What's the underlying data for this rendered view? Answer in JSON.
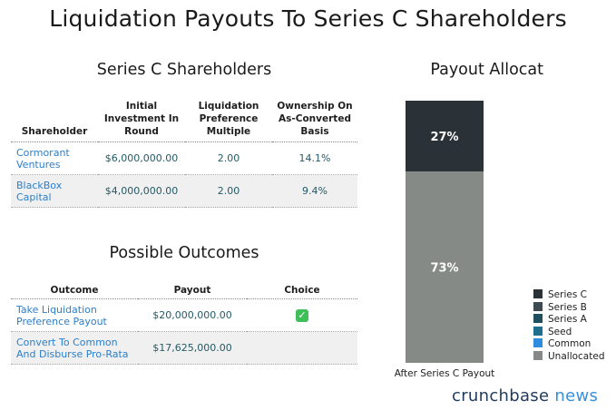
{
  "title": "Liquidation Payouts To Series C Shareholders",
  "shareholders": {
    "heading": "Series C Shareholders",
    "columns": [
      "Shareholder",
      "Initial Investment In Round",
      "Liquidation Preference Multiple",
      "Ownership On As-Converted Basis"
    ],
    "rows": [
      {
        "name": "Cormorant Ventures",
        "investment": "$6,000,000.00",
        "multiple": "2.00",
        "ownership": "14.1%"
      },
      {
        "name": "BlackBox Capital",
        "investment": "$4,000,000.00",
        "multiple": "2.00",
        "ownership": "9.4%"
      }
    ]
  },
  "outcomes": {
    "heading": "Possible Outcomes",
    "columns": [
      "Outcome",
      "Payout",
      "Choice"
    ],
    "rows": [
      {
        "outcome": "Take Liquidation Preference Payout",
        "payout": "$20,000,000.00",
        "choice_icon": "check-icon",
        "chosen": true
      },
      {
        "outcome": "Convert To Common And Disburse Pro-Rata",
        "payout": "$17,625,000.00",
        "chosen": false
      }
    ]
  },
  "chart_data": {
    "type": "bar",
    "stacked": true,
    "title": "Payout Allocation",
    "categories": [
      "After Series C Payout"
    ],
    "ylim": [
      0,
      100
    ],
    "series": [
      {
        "name": "Series C",
        "values": [
          27
        ],
        "label": "27%",
        "color": "#2a3238"
      },
      {
        "name": "Series B",
        "values": [
          0
        ],
        "color": "#3d4a52"
      },
      {
        "name": "Series A",
        "values": [
          0
        ],
        "color": "#1f4e5f"
      },
      {
        "name": "Seed",
        "values": [
          0
        ],
        "color": "#1e6e8e"
      },
      {
        "name": "Common",
        "values": [
          0
        ],
        "color": "#2f8de0"
      },
      {
        "name": "Unallocated",
        "values": [
          73
        ],
        "label": "73%",
        "color": "#868a87"
      }
    ],
    "legend_position": "bottom-right"
  },
  "brand": {
    "part1": "crunchbase",
    "part2": "news"
  }
}
